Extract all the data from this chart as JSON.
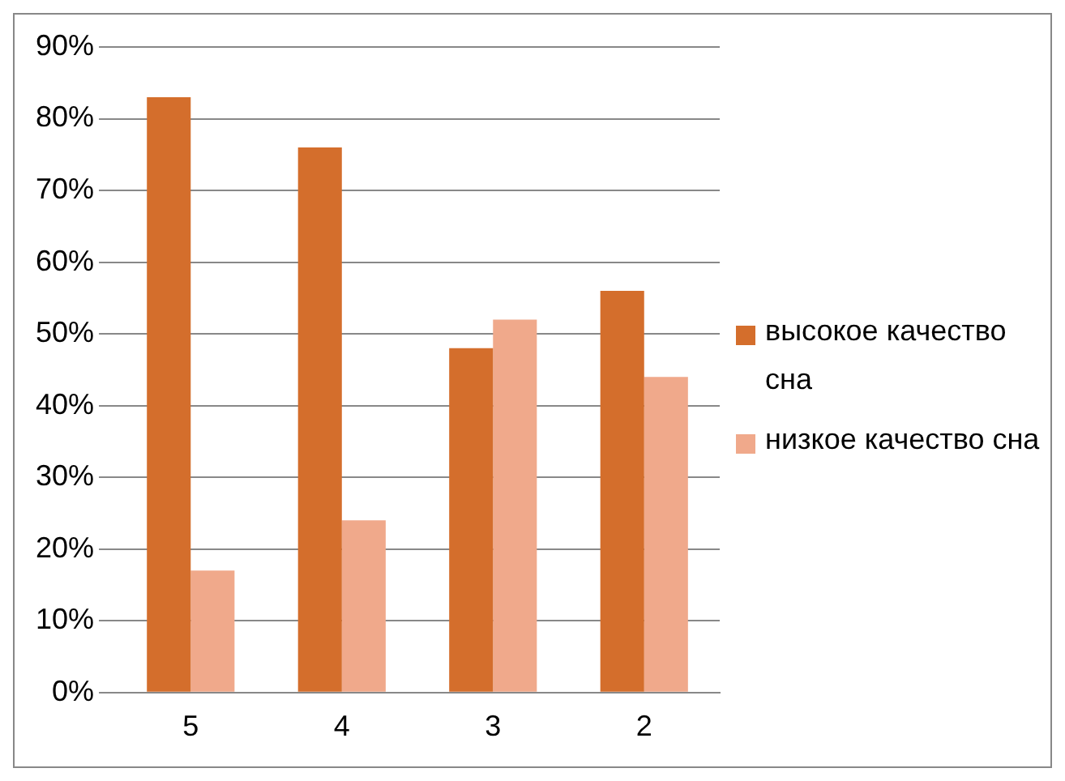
{
  "chart_data": {
    "type": "bar",
    "categories": [
      "5",
      "4",
      "3",
      "2"
    ],
    "series": [
      {
        "name": "высокое качество сна",
        "color": "#d46e2c",
        "values": [
          83,
          76,
          48,
          56
        ]
      },
      {
        "name": "низкое качество сна",
        "color": "#f0a98b",
        "values": [
          17,
          24,
          52,
          44
        ]
      }
    ],
    "ylim": [
      0,
      90
    ],
    "yticks": [
      {
        "value": 0,
        "label": "0%"
      },
      {
        "value": 10,
        "label": "10%"
      },
      {
        "value": 20,
        "label": "20%"
      },
      {
        "value": 30,
        "label": "30%"
      },
      {
        "value": 40,
        "label": "40%"
      },
      {
        "value": 50,
        "label": "50%"
      },
      {
        "value": 60,
        "label": "60%"
      },
      {
        "value": 70,
        "label": "70%"
      },
      {
        "value": 80,
        "label": "80%"
      },
      {
        "value": 90,
        "label": "90%"
      }
    ],
    "grid": "y",
    "legend": "right"
  }
}
